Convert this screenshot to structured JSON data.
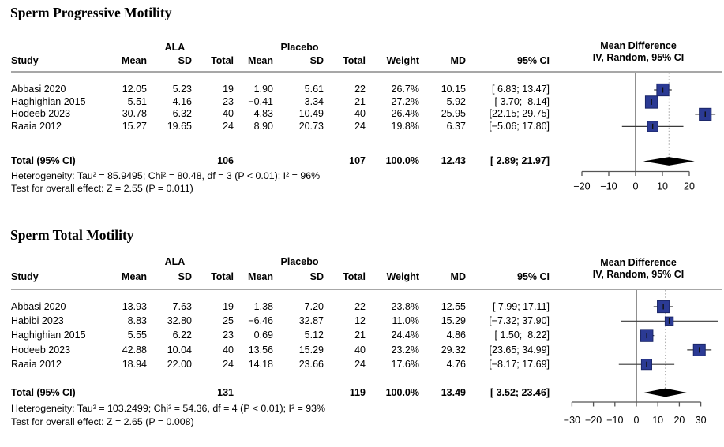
{
  "colors": {
    "square_fill": "#2b3a94",
    "square_border": "#1a2668",
    "marker_line": "#111111",
    "diamond_fill": "#000000",
    "rule_gray": "#8a8a8a",
    "axis_gray": "#555555",
    "ci_line": "#3a3a3a",
    "dashed_line": "#a3a3a3",
    "text": "#000000"
  },
  "sections": [
    {
      "title": "Sperm Progressive Motility",
      "group_headers": {
        "treatment": "ALA",
        "control": "Placebo"
      },
      "plot_header": {
        "line1": "Mean Difference",
        "line2": "IV, Random, 95% CI"
      },
      "columns": {
        "study": "Study",
        "mean_t": "Mean",
        "sd_t": "SD",
        "total_t": "Total",
        "mean_c": "Mean",
        "sd_c": "SD",
        "total_c": "Total",
        "weight": "Weight",
        "md": "MD",
        "ci": "95% CI"
      },
      "rows": [
        {
          "study": "Abbasi 2020",
          "mean_t": "12.05",
          "sd_t": "5.23",
          "n_t": "19",
          "mean_c": "1.90",
          "sd_c": "5.61",
          "n_c": "22",
          "weight": "26.7%",
          "md_text": "10.15",
          "ci_text": "[ 6.83; 13.47]",
          "md": 10.15,
          "lo": 6.83,
          "hi": 13.47,
          "weight_val": 26.7
        },
        {
          "study": "Haghighian 2015",
          "mean_t": "5.51",
          "sd_t": "4.16",
          "n_t": "23",
          "mean_c": "−0.41",
          "sd_c": "3.34",
          "n_c": "21",
          "weight": "27.2%",
          "md_text": "5.92",
          "ci_text": "[ 3.70;  8.14]",
          "md": 5.92,
          "lo": 3.7,
          "hi": 8.14,
          "weight_val": 27.2
        },
        {
          "study": "Hodeeb 2023",
          "mean_t": "30.78",
          "sd_t": "6.32",
          "n_t": "40",
          "mean_c": "4.83",
          "sd_c": "10.49",
          "n_c": "40",
          "weight": "26.4%",
          "md_text": "25.95",
          "ci_text": "[22.15; 29.75]",
          "md": 25.95,
          "lo": 22.15,
          "hi": 29.75,
          "weight_val": 26.4
        },
        {
          "study": "Raaia 2012",
          "mean_t": "15.27",
          "sd_t": "19.65",
          "n_t": "24",
          "mean_c": "8.90",
          "sd_c": "20.73",
          "n_c": "24",
          "weight": "19.8%",
          "md_text": "6.37",
          "ci_text": "[−5.06; 17.80]",
          "md": 6.37,
          "lo": -5.06,
          "hi": 17.8,
          "weight_val": 19.8
        }
      ],
      "total_row": {
        "label": "Total (95% CI)",
        "n_t": "106",
        "n_c": "107",
        "weight": "100.0%",
        "md_text": "12.43",
        "ci_text": "[ 2.89; 21.97]",
        "md": 12.43,
        "lo": 2.89,
        "hi": 21.97
      },
      "heterogeneity": "Heterogeneity: Tau² = 85.9495; Chi² = 80.48, df = 3 (P < 0.01); I² = 96%",
      "overall_effect_test": "Test for overall effect: Z = 2.55 (P = 0.011)",
      "axis": {
        "ticks": [
          -20,
          -10,
          0,
          10,
          20
        ]
      }
    },
    {
      "title": "Sperm Total Motility",
      "group_headers": {
        "treatment": "ALA",
        "control": "Placebo"
      },
      "plot_header": {
        "line1": "Mean Difference",
        "line2": "IV, Random, 95% CI"
      },
      "columns": {
        "study": "Study",
        "mean_t": "Mean",
        "sd_t": "SD",
        "total_t": "Total",
        "mean_c": "Mean",
        "sd_c": "SD",
        "total_c": "Total",
        "weight": "Weight",
        "md": "MD",
        "ci": "95% CI"
      },
      "rows": [
        {
          "study": "Abbasi 2020",
          "mean_t": "13.93",
          "sd_t": "7.63",
          "n_t": "19",
          "mean_c": "1.38",
          "sd_c": "7.20",
          "n_c": "22",
          "weight": "23.8%",
          "md_text": "12.55",
          "ci_text": "[ 7.99; 17.11]",
          "md": 12.55,
          "lo": 7.99,
          "hi": 17.11,
          "weight_val": 23.8
        },
        {
          "study": "Habibi 2023",
          "mean_t": "8.83",
          "sd_t": "32.80",
          "n_t": "25",
          "mean_c": "−6.46",
          "sd_c": "32.87",
          "n_c": "12",
          "weight": "11.0%",
          "md_text": "15.29",
          "ci_text": "[−7.32; 37.90]",
          "md": 15.29,
          "lo": -7.32,
          "hi": 37.9,
          "weight_val": 11.0
        },
        {
          "study": "Haghighian 2015",
          "mean_t": "5.55",
          "sd_t": "6.22",
          "n_t": "23",
          "mean_c": "0.69",
          "sd_c": "5.12",
          "n_c": "21",
          "weight": "24.4%",
          "md_text": "4.86",
          "ci_text": "[ 1.50;  8.22]",
          "md": 4.86,
          "lo": 1.5,
          "hi": 8.22,
          "weight_val": 24.4
        },
        {
          "study": "Hodeeb 2023",
          "mean_t": "42.88",
          "sd_t": "10.04",
          "n_t": "40",
          "mean_c": "13.56",
          "sd_c": "15.29",
          "n_c": "40",
          "weight": "23.2%",
          "md_text": "29.32",
          "ci_text": "[23.65; 34.99]",
          "md": 29.32,
          "lo": 23.65,
          "hi": 34.99,
          "weight_val": 23.2
        },
        {
          "study": "Raaia 2012",
          "mean_t": "18.94",
          "sd_t": "22.00",
          "n_t": "24",
          "mean_c": "14.18",
          "sd_c": "23.66",
          "n_c": "24",
          "weight": "17.6%",
          "md_text": "4.76",
          "ci_text": "[−8.17; 17.69]",
          "md": 4.76,
          "lo": -8.17,
          "hi": 17.69,
          "weight_val": 17.6
        }
      ],
      "total_row": {
        "label": "Total (95% CI)",
        "n_t": "131",
        "n_c": "119",
        "weight": "100.0%",
        "md_text": "13.49",
        "ci_text": "[ 3.52; 23.46]",
        "md": 13.49,
        "lo": 3.52,
        "hi": 23.46
      },
      "heterogeneity": "Heterogeneity: Tau² = 103.2499; Chi² = 54.36, df = 4 (P < 0.01); I² = 93%",
      "overall_effect_test": "Test for overall effect: Z = 2.65 (P = 0.008)",
      "axis": {
        "ticks": [
          -30,
          -20,
          -10,
          0,
          10,
          20,
          30
        ]
      }
    }
  ],
  "chart_data": [
    {
      "type": "scatter",
      "subtype": "forest_plot",
      "title": "Sperm Progressive Motility",
      "xlabel": "Mean Difference",
      "model": "IV, Random, 95% CI",
      "x_ticks": [
        -20,
        -10,
        0,
        10,
        20
      ],
      "zero_line": 0,
      "dashed_line_at": 12.43,
      "studies": [
        {
          "name": "Abbasi 2020",
          "md": 10.15,
          "ci": [
            6.83,
            13.47
          ],
          "weight_pct": 26.7,
          "n_treatment": 19,
          "n_control": 22
        },
        {
          "name": "Haghighian 2015",
          "md": 5.92,
          "ci": [
            3.7,
            8.14
          ],
          "weight_pct": 27.2,
          "n_treatment": 23,
          "n_control": 21
        },
        {
          "name": "Hodeeb 2023",
          "md": 25.95,
          "ci": [
            22.15,
            29.75
          ],
          "weight_pct": 26.4,
          "n_treatment": 40,
          "n_control": 40
        },
        {
          "name": "Raaia 2012",
          "md": 6.37,
          "ci": [
            -5.06,
            17.8
          ],
          "weight_pct": 19.8,
          "n_treatment": 24,
          "n_control": 24
        }
      ],
      "pooled": {
        "md": 12.43,
        "ci": [
          2.89,
          21.97
        ],
        "weight_pct": 100.0,
        "n_treatment": 106,
        "n_control": 107
      },
      "heterogeneity": {
        "tau2": 85.9495,
        "chi2": 80.48,
        "df": 3,
        "p": "< 0.01",
        "i2_pct": 96
      },
      "overall_effect": {
        "z": 2.55,
        "p": 0.011
      }
    },
    {
      "type": "scatter",
      "subtype": "forest_plot",
      "title": "Sperm Total Motility",
      "xlabel": "Mean Difference",
      "model": "IV, Random, 95% CI",
      "x_ticks": [
        -30,
        -20,
        -10,
        0,
        10,
        20,
        30
      ],
      "zero_line": 0,
      "dashed_line_at": 13.49,
      "studies": [
        {
          "name": "Abbasi 2020",
          "md": 12.55,
          "ci": [
            7.99,
            17.11
          ],
          "weight_pct": 23.8,
          "n_treatment": 19,
          "n_control": 22
        },
        {
          "name": "Habibi 2023",
          "md": 15.29,
          "ci": [
            -7.32,
            37.9
          ],
          "weight_pct": 11.0,
          "n_treatment": 25,
          "n_control": 12
        },
        {
          "name": "Haghighian 2015",
          "md": 4.86,
          "ci": [
            1.5,
            8.22
          ],
          "weight_pct": 24.4,
          "n_treatment": 23,
          "n_control": 21
        },
        {
          "name": "Hodeeb 2023",
          "md": 29.32,
          "ci": [
            23.65,
            34.99
          ],
          "weight_pct": 23.2,
          "n_treatment": 40,
          "n_control": 40
        },
        {
          "name": "Raaia 2012",
          "md": 4.76,
          "ci": [
            -8.17,
            17.69
          ],
          "weight_pct": 17.6,
          "n_treatment": 24,
          "n_control": 24
        }
      ],
      "pooled": {
        "md": 13.49,
        "ci": [
          3.52,
          23.46
        ],
        "weight_pct": 100.0,
        "n_treatment": 131,
        "n_control": 119
      },
      "heterogeneity": {
        "tau2": 103.2499,
        "chi2": 54.36,
        "df": 4,
        "p": "< 0.01",
        "i2_pct": 93
      },
      "overall_effect": {
        "z": 2.65,
        "p": 0.008
      }
    }
  ]
}
